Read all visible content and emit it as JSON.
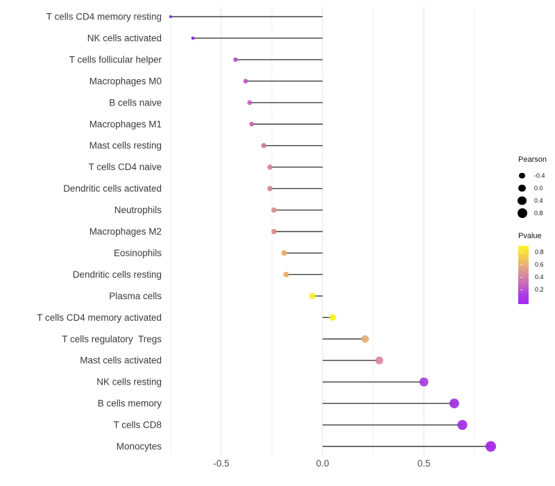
{
  "chart_data": {
    "type": "scatter",
    "subtype": "lollipop",
    "title": "",
    "xlabel": "",
    "ylabel": "",
    "xlim": [
      -0.78,
      0.91
    ],
    "grid": true,
    "legend_position": "right",
    "x_ticks": {
      "values": [
        -0.5,
        0.0,
        0.5
      ],
      "labels": [
        "-0.5",
        "0.0",
        "0.5"
      ]
    },
    "x_minor_ticks": [
      -0.75,
      -0.25,
      0.25,
      0.75
    ],
    "points": [
      {
        "label": "T cells CD4 memory resting",
        "pearson": -0.75,
        "color": "#7d18d9"
      },
      {
        "label": "NK cells activated",
        "pearson": -0.64,
        "color": "#8a21e0"
      },
      {
        "label": "T cells follicular helper",
        "pearson": -0.43,
        "color": "#b244ca"
      },
      {
        "label": "Macrophages M0",
        "pearson": -0.38,
        "color": "#bf52c2"
      },
      {
        "label": "B cells naive",
        "pearson": -0.36,
        "color": "#c45cbb"
      },
      {
        "label": "Macrophages M1",
        "pearson": -0.35,
        "color": "#c763b4"
      },
      {
        "label": "Mast cells resting",
        "pearson": -0.29,
        "color": "#cc739d"
      },
      {
        "label": "T cells CD4 naive",
        "pearson": -0.26,
        "color": "#d5838e"
      },
      {
        "label": "Dendritic cells activated",
        "pearson": -0.26,
        "color": "#d5838e"
      },
      {
        "label": "Neutrophils",
        "pearson": -0.24,
        "color": "#d98a87"
      },
      {
        "label": "Macrophages M2",
        "pearson": -0.24,
        "color": "#d98a87"
      },
      {
        "label": "Eosinophils",
        "pearson": -0.19,
        "color": "#eda55f"
      },
      {
        "label": "Dendritic cells resting",
        "pearson": -0.18,
        "color": "#eda862"
      },
      {
        "label": "Plasma cells",
        "pearson": -0.05,
        "color": "#f7ee1c"
      },
      {
        "label": "T cells CD4 memory activated",
        "pearson": 0.05,
        "color": "#f8f019"
      },
      {
        "label": "T cells regulatory  Tregs",
        "pearson": 0.21,
        "color": "#e9ab74"
      },
      {
        "label": "Mast cells activated",
        "pearson": 0.28,
        "color": "#d9879a"
      },
      {
        "label": "NK cells resting",
        "pearson": 0.5,
        "color": "#a936dd"
      },
      {
        "label": "B cells memory",
        "pearson": 0.65,
        "color": "#9b29e3"
      },
      {
        "label": "T cells CD8",
        "pearson": 0.69,
        "color": "#a028e8"
      },
      {
        "label": "Monocytes",
        "pearson": 0.83,
        "color": "#a21de9"
      }
    ]
  },
  "legend": {
    "pearson": {
      "title": "Pearson",
      "entries": [
        {
          "label": "-0.4",
          "diameter": 8.5
        },
        {
          "label": "0.0",
          "diameter": 10.5
        },
        {
          "label": "0.4",
          "diameter": 12.5
        },
        {
          "label": "0.8",
          "diameter": 14
        }
      ]
    },
    "pvalue": {
      "title": "Pvalue",
      "tick_labels": [
        "0.8",
        "0.6",
        "0.4",
        "0.2"
      ],
      "gradient_stops": [
        "#fbf724",
        "#f6d83f",
        "#eeb76f",
        "#e09a8e",
        "#d07ba8",
        "#bf5cc9",
        "#ab37ea",
        "#a129f3"
      ]
    }
  },
  "style": {
    "background": "#ffffff",
    "stem_color": "#3b3b3b",
    "grid_major": "#e3e3e3",
    "grid_minor": "#efefef",
    "y_label_color": "#3a3a3a",
    "x_tick_color": "#4d4d4d",
    "dot_opacity": 0.9
  }
}
